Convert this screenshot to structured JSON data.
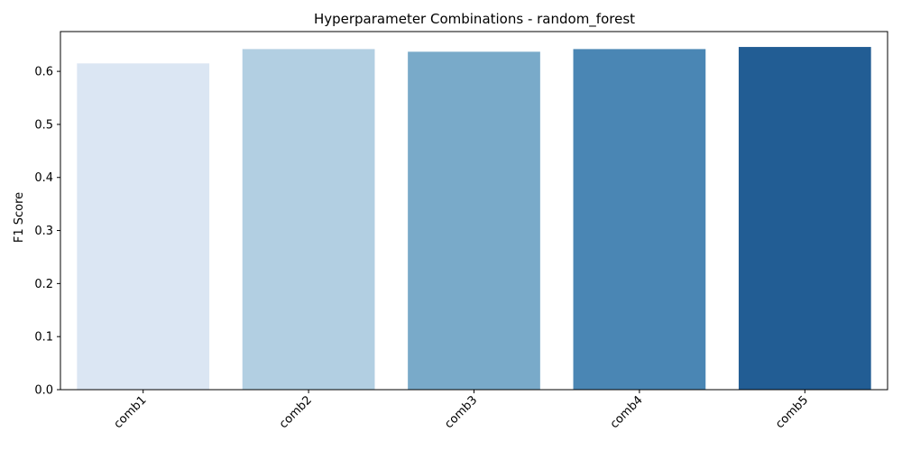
{
  "chart_data": {
    "type": "bar",
    "title": "Hyperparameter Combinations - random_forest",
    "xlabel": "",
    "ylabel": "F1 Score",
    "categories": [
      "comb1",
      "comb2",
      "comb3",
      "comb4",
      "comb5"
    ],
    "values": [
      0.615,
      0.642,
      0.637,
      0.642,
      0.646
    ],
    "colors": [
      "#dbe6f3",
      "#b2cfe2",
      "#79aac9",
      "#4a86b4",
      "#225d94"
    ],
    "ylim": [
      0,
      0.675
    ],
    "yticks": [
      "0.0",
      "0.1",
      "0.2",
      "0.3",
      "0.4",
      "0.5",
      "0.6"
    ],
    "grid": false,
    "legend": "none"
  }
}
